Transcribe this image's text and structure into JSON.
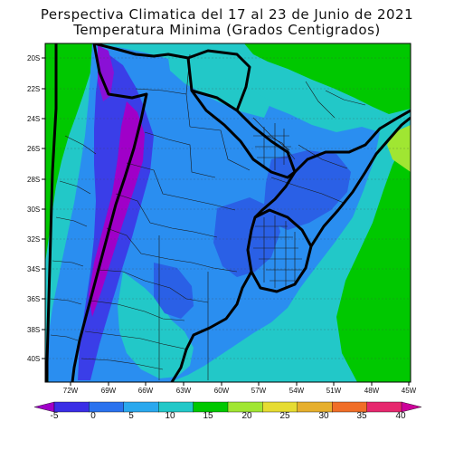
{
  "title": {
    "line1": "Perspectiva Climatica del 17 al 23 de Junio de 2021",
    "line2": "Temperatura Minima (Grados Centigrados)"
  },
  "map": {
    "lat_labels": [
      "20S",
      "22S",
      "24S",
      "26S",
      "28S",
      "30S",
      "32S",
      "34S",
      "36S",
      "38S",
      "40S"
    ],
    "lon_labels": [
      "72W",
      "69W",
      "66W",
      "63W",
      "60W",
      "57W",
      "54W",
      "51W",
      "48W",
      "45W"
    ]
  },
  "colorbar": {
    "labels": [
      "-5",
      "0",
      "5",
      "10",
      "15",
      "20",
      "25",
      "30",
      "35",
      "40"
    ],
    "colors": [
      "#a000c8",
      "#3a2ee6",
      "#2a72ee",
      "#2aa8ee",
      "#22c8c8",
      "#00c800",
      "#a0e632",
      "#e6dc32",
      "#e6af2d",
      "#f06e28",
      "#e6286e",
      "#cc0099"
    ]
  }
}
